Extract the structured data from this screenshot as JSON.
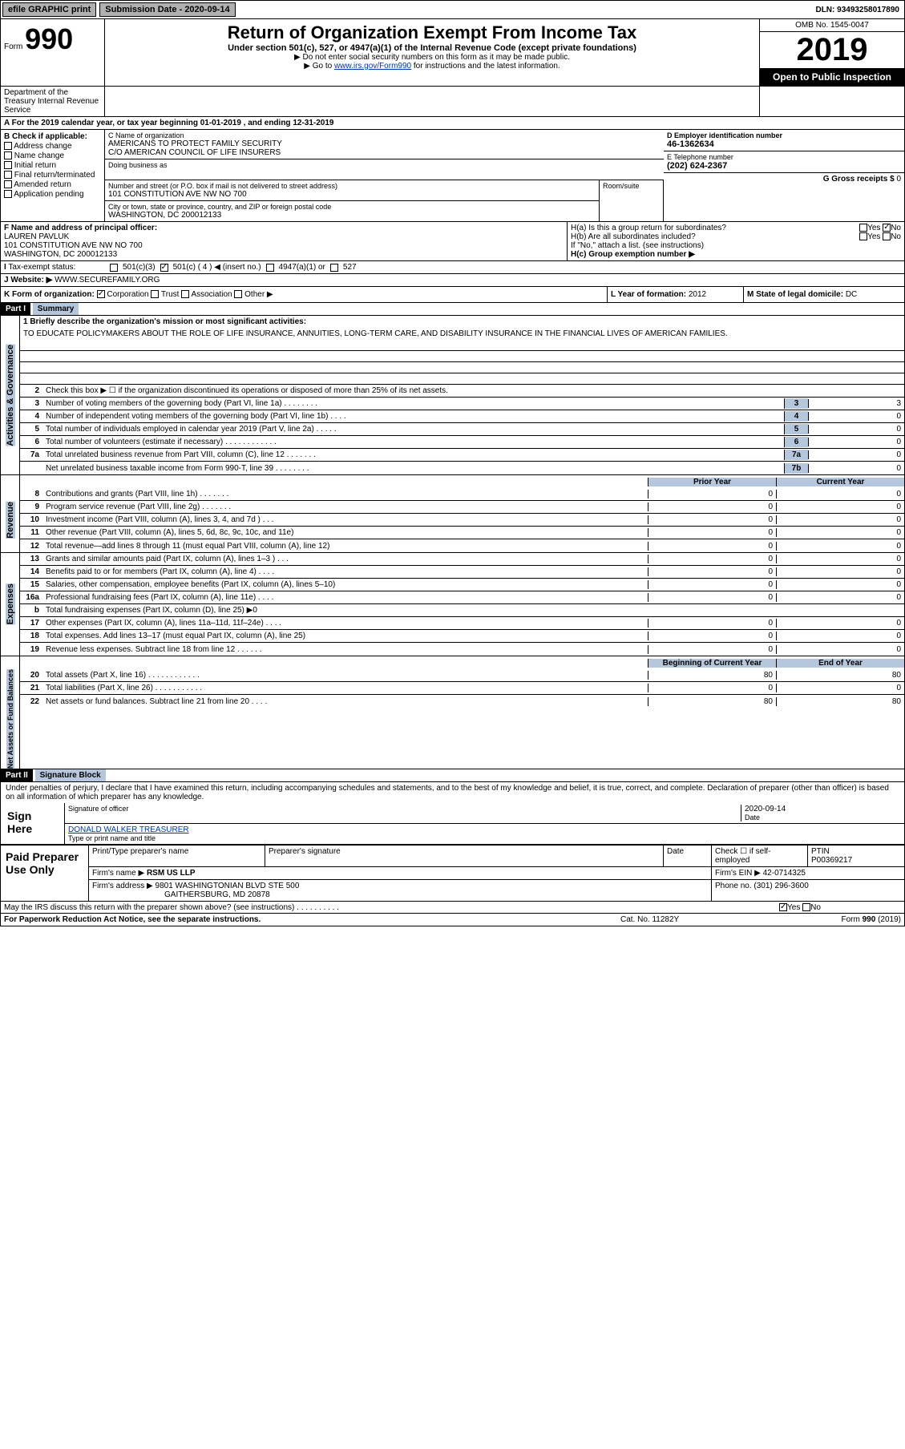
{
  "colors": {
    "header_blue": "#b4c7dc",
    "black": "#000000",
    "link": "#0033cc",
    "button_gray": "#b0b0b0"
  },
  "topbar": {
    "efile": "efile GRAPHIC print",
    "sub_label": "Submission Date - 2020-09-14",
    "dln": "DLN: 93493258017890"
  },
  "header": {
    "form_word": "Form",
    "form_num": "990",
    "title": "Return of Organization Exempt From Income Tax",
    "subtitle": "Under section 501(c), 527, or 4947(a)(1) of the Internal Revenue Code (except private foundations)",
    "note1": "▶ Do not enter social security numbers on this form as it may be made public.",
    "note2_prefix": "▶ Go to ",
    "note2_link": "www.irs.gov/Form990",
    "note2_suffix": " for instructions and the latest information.",
    "omb": "OMB No. 1545-0047",
    "year": "2019",
    "open_public": "Open to Public Inspection",
    "dept": "Department of the Treasury Internal Revenue Service"
  },
  "period": "A For the 2019 calendar year, or tax year beginning 01-01-2019    , and ending 12-31-2019",
  "B": {
    "label": "B Check if applicable:",
    "items": [
      "Address change",
      "Name change",
      "Initial return",
      "Final return/terminated",
      "Amended return",
      "Application pending"
    ]
  },
  "C": {
    "name_lbl": "C Name of organization",
    "name": "AMERICANS TO PROTECT FAMILY SECURITY",
    "co": "C/O AMERICAN COUNCIL OF LIFE INSURERS",
    "dba_lbl": "Doing business as",
    "addr_lbl": "Number and street (or P.O. box if mail is not delivered to street address)",
    "addr": "101 CONSTITUTION AVE NW NO 700",
    "room_lbl": "Room/suite",
    "city_lbl": "City or town, state or province, country, and ZIP or foreign postal code",
    "city": "WASHINGTON, DC  200012133"
  },
  "D": {
    "lbl": "D Employer identification number",
    "val": "46-1362634"
  },
  "E": {
    "lbl": "E Telephone number",
    "val": "(202) 624-2367"
  },
  "G": {
    "lbl": "G Gross receipts $",
    "val": "0"
  },
  "F": {
    "lbl": "F Name and address of principal officer:",
    "name": "LAUREN PAVLUK",
    "addr1": "101 CONSTITUTION AVE NW NO 700",
    "addr2": "WASHINGTON, DC  200012133"
  },
  "H": {
    "a": "H(a)  Is this a group return for subordinates?",
    "b": "H(b)  Are all subordinates included?",
    "note": "If \"No,\" attach a list. (see instructions)",
    "c": "H(c)  Group exemption number ▶",
    "yes": "Yes",
    "no": "No"
  },
  "I": {
    "lbl": "Tax-exempt status:",
    "o1": "501(c)(3)",
    "o2": "501(c) ( 4 ) ◀ (insert no.)",
    "o3": "4947(a)(1) or",
    "o4": "527"
  },
  "J": {
    "lbl": "J   Website: ▶",
    "val": "WWW.SECUREFAMILY.ORG"
  },
  "K": {
    "lbl": "K Form of organization:",
    "o1": "Corporation",
    "o2": "Trust",
    "o3": "Association",
    "o4": "Other ▶"
  },
  "L": {
    "lbl": "L Year of formation:",
    "val": "2012"
  },
  "M": {
    "lbl": "M State of legal domicile:",
    "val": "DC"
  },
  "part1": {
    "hdr": "Part I",
    "title": "Summary"
  },
  "mission": {
    "lbl": "1   Briefly describe the organization's mission or most significant activities:",
    "text": "TO EDUCATE POLICYMAKERS ABOUT THE ROLE OF LIFE INSURANCE, ANNUITIES, LONG-TERM CARE, AND DISABILITY INSURANCE IN THE FINANCIAL LIVES OF AMERICAN FAMILIES."
  },
  "ag_lines": {
    "l2": "Check this box ▶ ☐  if the organization discontinued its operations or disposed of more than 25% of its net assets.",
    "l3": {
      "t": "Number of voting members of the governing body (Part VI, line 1a)  .   .   .   .   .   .   .   .",
      "box": "3",
      "v": "3"
    },
    "l4": {
      "t": "Number of independent voting members of the governing body (Part VI, line 1b)   .   .   .   .",
      "box": "4",
      "v": "0"
    },
    "l5": {
      "t": "Total number of individuals employed in calendar year 2019 (Part V, line 2a)   .   .   .   .   .",
      "box": "5",
      "v": "0"
    },
    "l6": {
      "t": "Total number of volunteers (estimate if necessary)    .   .   .   .   .   .   .   .   .   .   .   .",
      "box": "6",
      "v": "0"
    },
    "l7a": {
      "t": "Total unrelated business revenue from Part VIII, column (C), line 12    .   .   .   .   .   .   .",
      "box": "7a",
      "v": "0"
    },
    "l7b": {
      "t": "Net unrelated business taxable income from Form 990-T, line 39   .   .   .   .   .   .   .   .",
      "box": "7b",
      "v": "0"
    }
  },
  "col_hdrs": {
    "prior": "Prior Year",
    "current": "Current Year"
  },
  "rev_lines": [
    {
      "n": "8",
      "t": "Contributions and grants (Part VIII, line 1h)    .   .   .   .   .   .   .",
      "p": "0",
      "c": "0"
    },
    {
      "n": "9",
      "t": "Program service revenue (Part VIII, line 2g)    .   .   .   .   .   .   .",
      "p": "0",
      "c": "0"
    },
    {
      "n": "10",
      "t": "Investment income (Part VIII, column (A), lines 3, 4, and 7d )    .   .   .",
      "p": "0",
      "c": "0"
    },
    {
      "n": "11",
      "t": "Other revenue (Part VIII, column (A), lines 5, 6d, 8c, 9c, 10c, and 11e)",
      "p": "0",
      "c": "0"
    },
    {
      "n": "12",
      "t": "Total revenue—add lines 8 through 11 (must equal Part VIII, column (A), line 12)",
      "p": "0",
      "c": "0"
    }
  ],
  "exp_lines": [
    {
      "n": "13",
      "t": "Grants and similar amounts paid (Part IX, column (A), lines 1–3 )   .   .   .",
      "p": "0",
      "c": "0"
    },
    {
      "n": "14",
      "t": "Benefits paid to or for members (Part IX, column (A), line 4)   .   .   .   .",
      "p": "0",
      "c": "0"
    },
    {
      "n": "15",
      "t": "Salaries, other compensation, employee benefits (Part IX, column (A), lines 5–10)",
      "p": "0",
      "c": "0"
    },
    {
      "n": "16a",
      "t": "Professional fundraising fees (Part IX, column (A), line 11e)    .   .   .   .",
      "p": "0",
      "c": "0"
    },
    {
      "n": "b",
      "t": "Total fundraising expenses (Part IX, column (D), line 25) ▶0",
      "gray": true
    },
    {
      "n": "17",
      "t": "Other expenses (Part IX, column (A), lines 11a–11d, 11f–24e)   .   .   .   .",
      "p": "0",
      "c": "0"
    },
    {
      "n": "18",
      "t": "Total expenses. Add lines 13–17 (must equal Part IX, column (A), line 25)",
      "p": "0",
      "c": "0"
    },
    {
      "n": "19",
      "t": "Revenue less expenses. Subtract line 18 from line 12   .   .   .   .   .   .",
      "p": "0",
      "c": "0"
    }
  ],
  "na_hdrs": {
    "beg": "Beginning of Current Year",
    "end": "End of Year"
  },
  "na_lines": [
    {
      "n": "20",
      "t": "Total assets (Part X, line 16)   .   .   .   .   .   .   .   .   .   .   .   .",
      "p": "80",
      "c": "80"
    },
    {
      "n": "21",
      "t": "Total liabilities (Part X, line 26)   .   .   .   .   .   .   .   .   .   .   .",
      "p": "0",
      "c": "0"
    },
    {
      "n": "22",
      "t": "Net assets or fund balances. Subtract line 21 from line 20    .   .   .   .",
      "p": "80",
      "c": "80"
    }
  ],
  "part2": {
    "hdr": "Part II",
    "title": "Signature Block"
  },
  "sig": {
    "decl": "Under penalties of perjury, I declare that I have examined this return, including accompanying schedules and statements, and to the best of my knowledge and belief, it is true, correct, and complete. Declaration of preparer (other than officer) is based on all information of which preparer has any knowledge.",
    "sign_here": "Sign Here",
    "sig_officer": "Signature of officer",
    "date": "Date",
    "date_val": "2020-09-14",
    "name": "DONALD WALKER  TREASURER",
    "name_lbl": "Type or print name and title"
  },
  "prep": {
    "title": "Paid Preparer Use Only",
    "h1": "Print/Type preparer's name",
    "h2": "Preparer's signature",
    "h3": "Date",
    "h4": "Check ☐ if self-employed",
    "h5": "PTIN",
    "ptin": "P00369217",
    "firm_lbl": "Firm's name    ▶",
    "firm": "RSM US LLP",
    "ein_lbl": "Firm's EIN ▶",
    "ein": "42-0714325",
    "addr_lbl": "Firm's address ▶",
    "addr1": "9801 WASHINGTONIAN BLVD STE 500",
    "addr2": "GAITHERSBURG, MD  20878",
    "phone_lbl": "Phone no.",
    "phone": "(301) 296-3600"
  },
  "discuss": {
    "q": "May the IRS discuss this return with the preparer shown above? (see instructions)   .   .   .   .   .   .   .   .   .   .",
    "yes": "Yes",
    "no": "No"
  },
  "footer": {
    "left": "For Paperwork Reduction Act Notice, see the separate instructions.",
    "mid": "Cat. No. 11282Y",
    "right": "Form 990 (2019)"
  },
  "side_labels": {
    "ag": "Activities & Governance",
    "rev": "Revenue",
    "exp": "Expenses",
    "na": "Net Assets or Fund Balances"
  }
}
